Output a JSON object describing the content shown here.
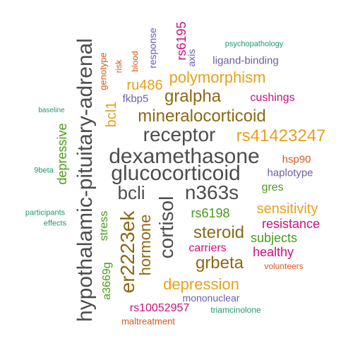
{
  "palette": {
    "gray": "#4d4d4d",
    "brown": "#8b6914",
    "gold": "#e6a11c",
    "magenta": "#cc0f7f",
    "green": "#4a9a1a",
    "purple": "#6a5fa8",
    "teal": "#1d9a6c",
    "orange": "#d9571c"
  },
  "words": [
    {
      "text": "hypothalamic-pituitary-adrenal",
      "color": "gray",
      "rank": 1
    },
    {
      "text": "glucocorticoid",
      "color": "gray",
      "rank": 1
    },
    {
      "text": "dexamethasone",
      "color": "gray",
      "rank": 1
    },
    {
      "text": "receptor",
      "color": "gray",
      "rank": 2
    },
    {
      "text": "cortisol",
      "color": "gray",
      "rank": 2
    },
    {
      "text": "n363s",
      "color": "gray",
      "rank": 2
    },
    {
      "text": "bcli",
      "color": "gray",
      "rank": 2
    },
    {
      "text": "er2223ek",
      "color": "brown",
      "rank": 2
    },
    {
      "text": "mineralocorticoid",
      "color": "brown",
      "rank": 2
    },
    {
      "text": "rs41423247",
      "color": "gold",
      "rank": 2
    },
    {
      "text": "gralpha",
      "color": "brown",
      "rank": 3
    },
    {
      "text": "polymorphism",
      "color": "gold",
      "rank": 3
    },
    {
      "text": "steroid",
      "color": "brown",
      "rank": 3
    },
    {
      "text": "grbeta",
      "color": "brown",
      "rank": 3
    },
    {
      "text": "hormone",
      "color": "brown",
      "rank": 3
    },
    {
      "text": "depression",
      "color": "gold",
      "rank": 3
    },
    {
      "text": "sensitivity",
      "color": "gold",
      "rank": 3
    },
    {
      "text": "ru486",
      "color": "gold",
      "rank": 3
    },
    {
      "text": "bcl1",
      "color": "gold",
      "rank": 3
    },
    {
      "text": "depressive",
      "color": "green",
      "rank": 4
    },
    {
      "text": "rs6195",
      "color": "magenta",
      "rank": 4
    },
    {
      "text": "rs6198",
      "color": "green",
      "rank": 4
    },
    {
      "text": "subjects",
      "color": "green",
      "rank": 4
    },
    {
      "text": "healthy",
      "color": "magenta",
      "rank": 4
    },
    {
      "text": "resistance",
      "color": "magenta",
      "rank": 4
    },
    {
      "text": "cushings",
      "color": "magenta",
      "rank": 4
    },
    {
      "text": "carriers",
      "color": "magenta",
      "rank": 4
    },
    {
      "text": "gres",
      "color": "green",
      "rank": 4
    },
    {
      "text": "stress",
      "color": "green",
      "rank": 4
    },
    {
      "text": "a3669g",
      "color": "green",
      "rank": 4
    },
    {
      "text": "rs10052957",
      "color": "magenta",
      "rank": 4
    },
    {
      "text": "ligand-binding",
      "color": "purple",
      "rank": 5
    },
    {
      "text": "haplotype",
      "color": "purple",
      "rank": 5
    },
    {
      "text": "fkbp5",
      "color": "purple",
      "rank": 5
    },
    {
      "text": "axis",
      "color": "purple",
      "rank": 5
    },
    {
      "text": "response",
      "color": "purple",
      "rank": 5
    },
    {
      "text": "mononuclear",
      "color": "purple",
      "rank": 5
    },
    {
      "text": "hsp90",
      "color": "orange",
      "rank": 5
    },
    {
      "text": "genotype",
      "color": "orange",
      "rank": 6
    },
    {
      "text": "risk",
      "color": "orange",
      "rank": 6
    },
    {
      "text": "blood",
      "color": "orange",
      "rank": 6
    },
    {
      "text": "maltreatment",
      "color": "orange",
      "rank": 6
    },
    {
      "text": "volunteers",
      "color": "orange",
      "rank": 6
    },
    {
      "text": "triamcinolone",
      "color": "teal",
      "rank": 6
    },
    {
      "text": "psychopathology",
      "color": "teal",
      "rank": 6
    },
    {
      "text": "baseline",
      "color": "teal",
      "rank": 7
    },
    {
      "text": "9beta",
      "color": "teal",
      "rank": 7
    },
    {
      "text": "participants",
      "color": "teal",
      "rank": 7
    },
    {
      "text": "effects",
      "color": "teal",
      "rank": 7
    }
  ]
}
